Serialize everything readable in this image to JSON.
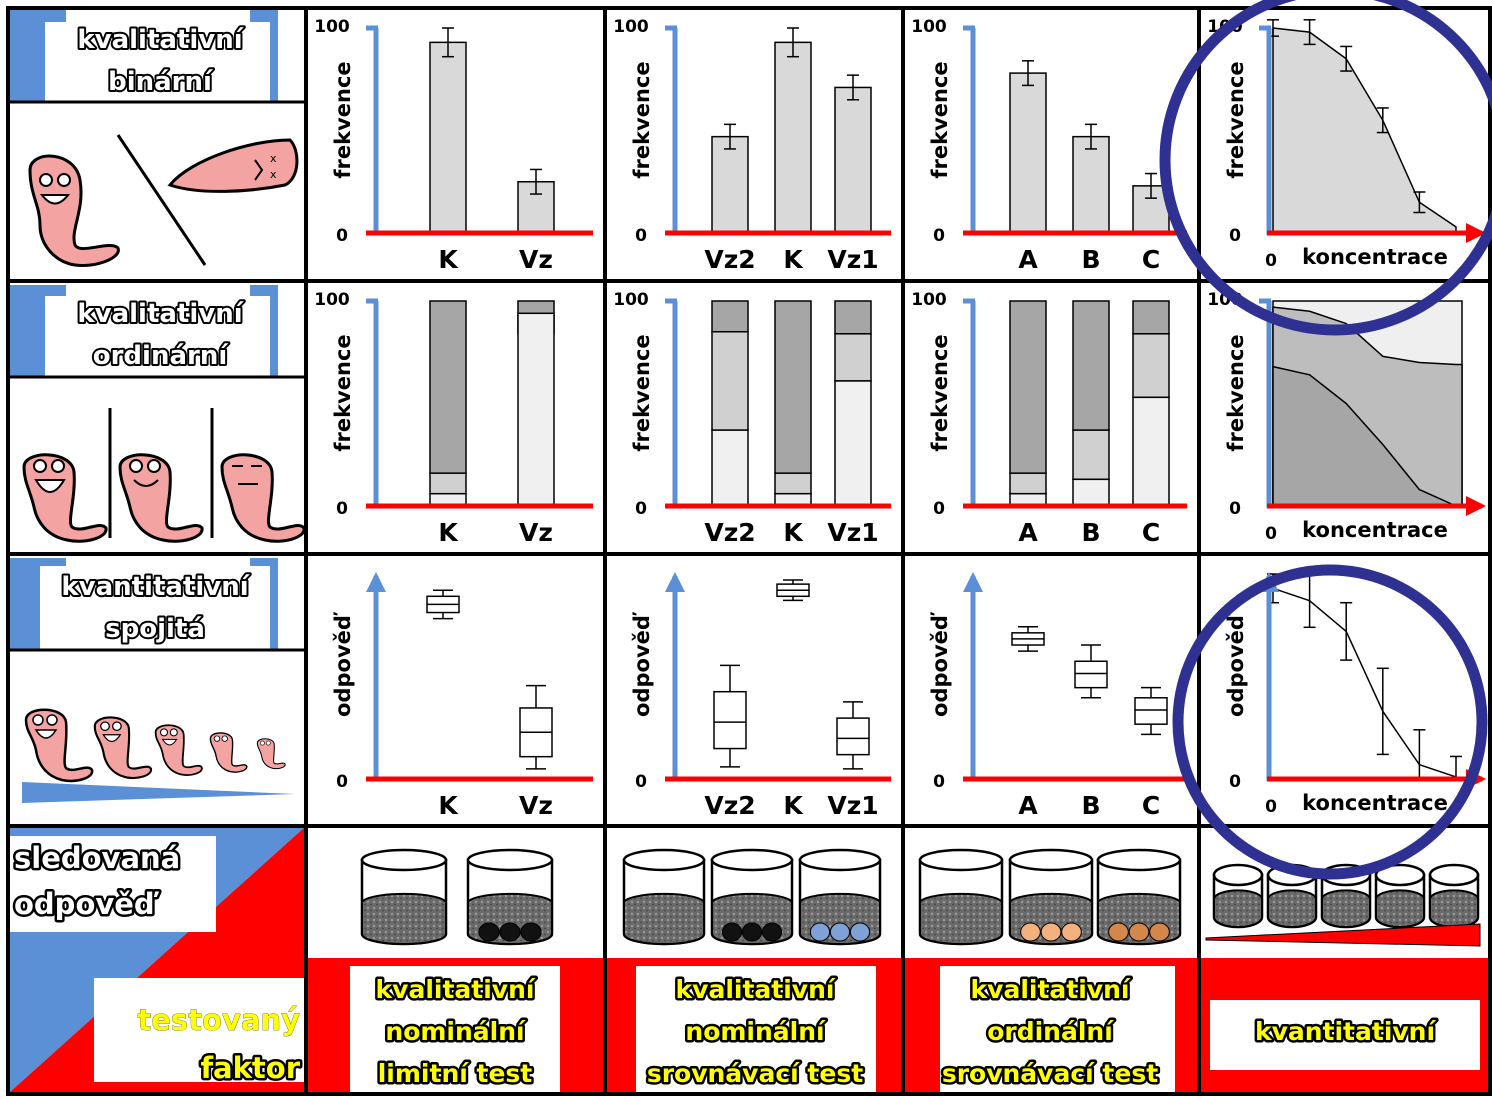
{
  "rows": [
    {
      "line1": "kvalitativní",
      "line2": "binární"
    },
    {
      "line1": "kvalitativní",
      "line2": "ordinární"
    },
    {
      "line1": "kvantitativní",
      "line2": "spojitá"
    }
  ],
  "corner": {
    "response_line1": "sledovaná",
    "response_line2": "odpověď",
    "factor_line1": "testovaný",
    "factor_line2": "faktor"
  },
  "columns": [
    {
      "line1": "kvalitativní",
      "line2": "nominální",
      "line3": "limitní test",
      "categories": [
        "K",
        "Vz"
      ]
    },
    {
      "line1": "kvalitativní",
      "line2": "nominální",
      "line3": "srovnávací test",
      "categories": [
        "Vz2",
        "K",
        "Vz1"
      ]
    },
    {
      "line1": "kvalitativní",
      "line2": "ordinální",
      "line3": "srovnávací test",
      "categories": [
        "A",
        "B",
        "C"
      ]
    },
    {
      "line1": "kvantitativní",
      "line2": "",
      "line3": "",
      "categories": []
    }
  ],
  "axis": {
    "y_top": "100",
    "y_zero": "0",
    "frequency": "frekvence",
    "response": "odpověď",
    "x_zero": "0",
    "concentration": "koncentrace"
  },
  "colors": {
    "grid": "#000000",
    "header_blue": "#5b8fd6",
    "header_red": "#ff0000",
    "y_axis": "#5b8fd6",
    "x_axis": "#ff0000",
    "bar_fill": "#d9d9d9",
    "highlight_circle": "#2e3192",
    "worm": "#f4a3a3"
  },
  "chart_data": [
    {
      "type": "bar",
      "row": "binární",
      "column": "limitní test",
      "categories": [
        "K",
        "Vz"
      ],
      "values": [
        93,
        25
      ],
      "errors": [
        7,
        6
      ],
      "ylim": [
        0,
        100
      ],
      "ylabel": "frekvence"
    },
    {
      "type": "bar",
      "row": "binární",
      "column": "nominální srovnávací",
      "categories": [
        "Vz2",
        "K",
        "Vz1"
      ],
      "values": [
        47,
        93,
        71
      ],
      "errors": [
        6,
        7,
        6
      ],
      "ylim": [
        0,
        100
      ],
      "ylabel": "frekvence"
    },
    {
      "type": "bar",
      "row": "binární",
      "column": "ordinální srovnávací",
      "categories": [
        "A",
        "B",
        "C"
      ],
      "values": [
        78,
        47,
        23
      ],
      "errors": [
        6,
        6,
        6
      ],
      "ylim": [
        0,
        100
      ],
      "ylabel": "frekvence"
    },
    {
      "type": "area",
      "row": "binární",
      "column": "kvantitativní",
      "x": [
        0,
        1,
        2,
        3,
        4,
        5
      ],
      "values": [
        100,
        98,
        85,
        55,
        15,
        3
      ],
      "errors": [
        4,
        6,
        6,
        6,
        5,
        0
      ],
      "ylim": [
        0,
        100
      ],
      "ylabel": "frekvence",
      "xlabel": "koncentrace"
    },
    {
      "type": "bar",
      "row": "ordinární",
      "column": "limitní test",
      "categories": [
        "K",
        "Vz"
      ],
      "series": [
        {
          "values": [
            6,
            94
          ]
        },
        {
          "values": [
            16,
            84
          ]
        }
      ],
      "ylim": [
        0,
        100
      ],
      "ylabel": "frekvence"
    },
    {
      "type": "bar",
      "row": "ordinární",
      "column": "nominální srovnávací",
      "categories": [
        "Vz2",
        "K",
        "Vz1"
      ],
      "series": [
        {
          "values": [
            37,
            6,
            61
          ]
        },
        {
          "values": [
            85,
            16,
            84
          ]
        }
      ],
      "ylim": [
        0,
        100
      ],
      "ylabel": "frekvence"
    },
    {
      "type": "bar",
      "row": "ordinární",
      "column": "ordinální srovnávací",
      "categories": [
        "A",
        "B",
        "C"
      ],
      "series": [
        {
          "values": [
            6,
            13,
            53
          ]
        },
        {
          "values": [
            16,
            37,
            84
          ]
        }
      ],
      "ylim": [
        0,
        100
      ],
      "ylabel": "frekvence"
    },
    {
      "type": "area",
      "row": "ordinární",
      "column": "kvantitativní",
      "x": [
        0,
        1,
        2,
        3,
        4,
        5
      ],
      "series": [
        {
          "values": [
            68,
            64,
            50,
            30,
            8,
            0
          ]
        },
        {
          "values": [
            97,
            95,
            89,
            73,
            70,
            69
          ]
        }
      ],
      "ylim": [
        0,
        100
      ],
      "ylabel": "frekvence",
      "xlabel": "koncentrace"
    },
    {
      "type": "box",
      "row": "spojitá",
      "column": "limitní test",
      "categories": [
        "K",
        "Vz"
      ],
      "boxes": [
        [
          79,
          82,
          86,
          90,
          93
        ],
        [
          5,
          11,
          23,
          35,
          46
        ]
      ],
      "ylabel": "odpověď"
    },
    {
      "type": "box",
      "row": "spojitá",
      "column": "nominální srovnávací",
      "categories": [
        "Vz2",
        "K",
        "Vz1"
      ],
      "boxes": [
        [
          6,
          15,
          28,
          43,
          56
        ],
        [
          88,
          90,
          93,
          96,
          98
        ],
        [
          5,
          12,
          20,
          30,
          38
        ]
      ],
      "ylabel": "odpověď"
    },
    {
      "type": "box",
      "row": "spojitá",
      "column": "ordinální srovnávací",
      "categories": [
        "A",
        "B",
        "C"
      ],
      "boxes": [
        [
          63,
          66,
          69,
          72,
          75
        ],
        [
          40,
          45,
          52,
          58,
          66
        ],
        [
          22,
          27,
          34,
          40,
          45
        ]
      ],
      "ylabel": "odpověď"
    },
    {
      "type": "line",
      "row": "spojitá",
      "column": "kvantitativní",
      "x": [
        0,
        1,
        2,
        3,
        4,
        5
      ],
      "values": [
        93,
        87,
        72,
        33,
        7,
        1
      ],
      "errors": [
        7,
        13,
        14,
        21,
        17,
        10
      ],
      "ylabel": "odpověď",
      "xlabel": "koncentrace"
    }
  ]
}
